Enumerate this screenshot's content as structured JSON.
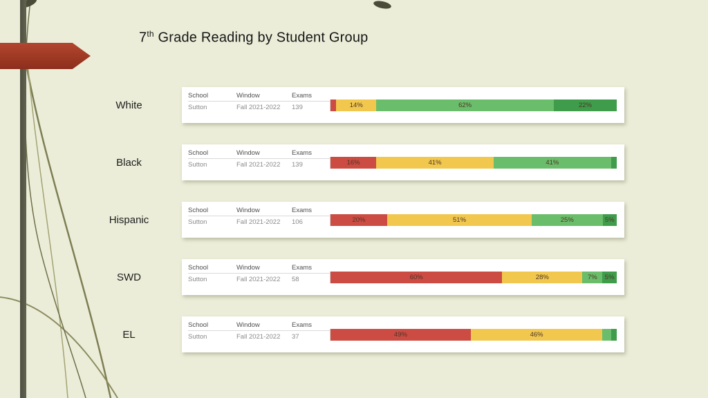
{
  "slide": {
    "title_number": "7",
    "title_sup": "th",
    "title_rest": " Grade Reading by Student Group"
  },
  "table_headers": {
    "school": "School",
    "window": "Window",
    "exams": "Exams"
  },
  "colors": {
    "red": "#CC4B43",
    "yellow": "#F1C84D",
    "green": "#6ABD6A",
    "dark_green": "#3E9C4B"
  },
  "groups": [
    {
      "label": "White",
      "school": "Sutton",
      "window": "Fall 2021-2022",
      "exams": "139",
      "segments": [
        {
          "color": "red",
          "pct": 2,
          "label": ""
        },
        {
          "color": "yellow",
          "pct": 14,
          "label": "14%"
        },
        {
          "color": "green",
          "pct": 62,
          "label": "62%"
        },
        {
          "color": "dark_green",
          "pct": 22,
          "label": "22%"
        }
      ]
    },
    {
      "label": "Black",
      "school": "Sutton",
      "window": "Fall 2021-2022",
      "exams": "139",
      "segments": [
        {
          "color": "red",
          "pct": 16,
          "label": "16%"
        },
        {
          "color": "yellow",
          "pct": 41,
          "label": "41%"
        },
        {
          "color": "green",
          "pct": 41,
          "label": "41%"
        },
        {
          "color": "dark_green",
          "pct": 2,
          "label": ""
        }
      ]
    },
    {
      "label": "Hispanic",
      "school": "Sutton",
      "window": "Fall 2021-2022",
      "exams": "106",
      "segments": [
        {
          "color": "red",
          "pct": 20,
          "label": "20%"
        },
        {
          "color": "yellow",
          "pct": 51,
          "label": "51%"
        },
        {
          "color": "green",
          "pct": 25,
          "label": "25%"
        },
        {
          "color": "dark_green",
          "pct": 5,
          "label": "5%"
        }
      ]
    },
    {
      "label": "SWD",
      "school": "Sutton",
      "window": "Fall 2021-2022",
      "exams": "58",
      "segments": [
        {
          "color": "red",
          "pct": 60,
          "label": "60%"
        },
        {
          "color": "yellow",
          "pct": 28,
          "label": "28%"
        },
        {
          "color": "green",
          "pct": 7,
          "label": "7%"
        },
        {
          "color": "dark_green",
          "pct": 5,
          "label": "5%"
        }
      ]
    },
    {
      "label": "EL",
      "school": "Sutton",
      "window": "Fall 2021-2022",
      "exams": "37",
      "segments": [
        {
          "color": "red",
          "pct": 49,
          "label": "49%"
        },
        {
          "color": "yellow",
          "pct": 46,
          "label": "46%"
        },
        {
          "color": "green",
          "pct": 3,
          "label": ""
        },
        {
          "color": "dark_green",
          "pct": 2,
          "label": ""
        }
      ]
    }
  ],
  "chart_data": {
    "type": "bar",
    "subtype": "horizontal-stacked",
    "title": "7th Grade Reading by Student Group",
    "categories": [
      "White",
      "Black",
      "Hispanic",
      "SWD",
      "EL"
    ],
    "series": [
      {
        "name": "red",
        "values": [
          2,
          16,
          20,
          60,
          49
        ]
      },
      {
        "name": "yellow",
        "values": [
          14,
          41,
          51,
          28,
          46
        ]
      },
      {
        "name": "green",
        "values": [
          62,
          41,
          25,
          7,
          3
        ]
      },
      {
        "name": "dark_green",
        "values": [
          22,
          2,
          5,
          5,
          2
        ]
      }
    ],
    "exams": [
      139,
      139,
      106,
      58,
      37
    ],
    "school": "Sutton",
    "window": "Fall 2021-2022",
    "unit": "percent",
    "xlim": [
      0,
      100
    ],
    "legend_position": "none",
    "grid": false
  }
}
